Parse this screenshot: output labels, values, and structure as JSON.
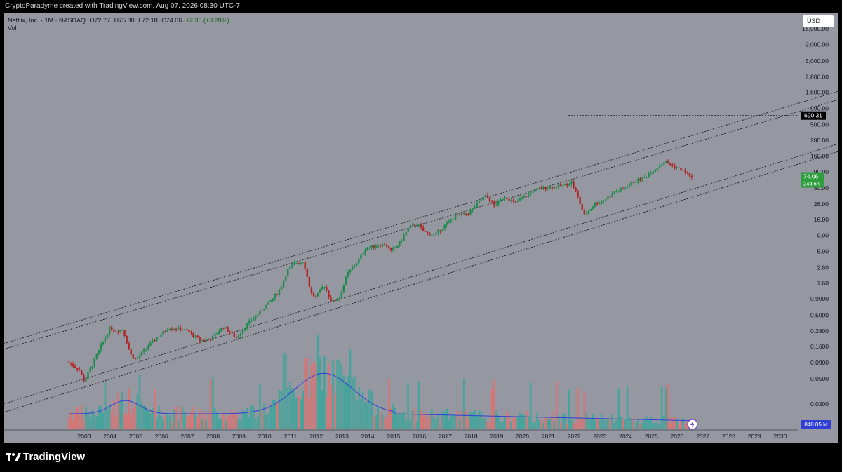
{
  "header": {
    "credit": "CryptoParadyme created with TradingView.com, Aug 07, 2026 08:30 UTC-7"
  },
  "legend": {
    "name": "Netflix, Inc. · 1M · NASDAQ",
    "open": "O72.77",
    "high": "H75.30",
    "low": "L72.18",
    "close": "C74.06",
    "change": "+2.35 (+3.28%)",
    "volume_label": "Vol"
  },
  "currency": "USD",
  "price_tags": {
    "level_line": "690.31",
    "last_price": "74.06",
    "countdown": "24d 5h",
    "volume": "848.05 M"
  },
  "brand": "TradingView",
  "colors": {
    "background": "#9598a1",
    "up_candle": "#1e8a4c",
    "down_candle": "#b22222",
    "volume_up": "#3aa59a",
    "volume_down": "#e0706e",
    "volume_ma": "#2f3fd6",
    "last_price_tag": "#2e9e3e"
  },
  "chart_data": {
    "type": "candlestick",
    "symbol": "Netflix, Inc. · 1M · NASDAQ",
    "y_scale": "log",
    "y_ticks": [
      "16,000.00",
      "9,000.00",
      "5,000.00",
      "2,800.00",
      "1,600.00",
      "900.00",
      "500.00",
      "280.00",
      "160.00",
      "90.00",
      "50.00",
      "28.00",
      "16.00",
      "9.00",
      "5.00",
      "2.80",
      "1.60",
      "0.9000",
      "0.5000",
      "0.2800",
      "0.1600",
      "0.0900",
      "0.0500",
      "0.0200"
    ],
    "x_ticks": [
      "2003",
      "2004",
      "2005",
      "2006",
      "2007",
      "2008",
      "2009",
      "2010",
      "2011",
      "2012",
      "2013",
      "2014",
      "2015",
      "2016",
      "2017",
      "2018",
      "2019",
      "2020",
      "2021",
      "2022",
      "2023",
      "2024",
      "2025",
      "2026",
      "2027",
      "2028",
      "2029",
      "2030"
    ],
    "price_path": [
      [
        2002.4,
        0.09
      ],
      [
        2002.8,
        0.07
      ],
      [
        2003.0,
        0.045
      ],
      [
        2003.3,
        0.08
      ],
      [
        2003.7,
        0.18
      ],
      [
        2004.0,
        0.32
      ],
      [
        2004.2,
        0.28
      ],
      [
        2004.5,
        0.3
      ],
      [
        2004.8,
        0.12
      ],
      [
        2005.0,
        0.1
      ],
      [
        2005.4,
        0.15
      ],
      [
        2005.8,
        0.22
      ],
      [
        2006.3,
        0.32
      ],
      [
        2006.8,
        0.3
      ],
      [
        2007.0,
        0.28
      ],
      [
        2007.5,
        0.2
      ],
      [
        2007.9,
        0.21
      ],
      [
        2008.4,
        0.33
      ],
      [
        2008.9,
        0.22
      ],
      [
        2009.3,
        0.35
      ],
      [
        2009.8,
        0.55
      ],
      [
        2010.3,
        0.9
      ],
      [
        2010.6,
        1.3
      ],
      [
        2010.9,
        2.6
      ],
      [
        2011.2,
        3.3
      ],
      [
        2011.5,
        3.6
      ],
      [
        2011.8,
        1.1
      ],
      [
        2012.0,
        0.95
      ],
      [
        2012.3,
        1.5
      ],
      [
        2012.6,
        0.8
      ],
      [
        2012.9,
        0.95
      ],
      [
        2013.2,
        2.2
      ],
      [
        2013.6,
        3.5
      ],
      [
        2013.9,
        5.5
      ],
      [
        2014.3,
        6.2
      ],
      [
        2014.7,
        6.5
      ],
      [
        2014.9,
        5.0
      ],
      [
        2015.2,
        6.5
      ],
      [
        2015.6,
        12.0
      ],
      [
        2015.9,
        13.5
      ],
      [
        2016.2,
        10.0
      ],
      [
        2016.6,
        9.0
      ],
      [
        2016.9,
        12.0
      ],
      [
        2017.4,
        18.0
      ],
      [
        2017.9,
        20.0
      ],
      [
        2018.3,
        30.0
      ],
      [
        2018.6,
        38.0
      ],
      [
        2018.9,
        26.0
      ],
      [
        2019.3,
        37.0
      ],
      [
        2019.7,
        29.0
      ],
      [
        2020.0,
        34.0
      ],
      [
        2020.4,
        45.0
      ],
      [
        2020.8,
        50.0
      ],
      [
        2021.2,
        52.0
      ],
      [
        2021.6,
        55.0
      ],
      [
        2021.9,
        62.0
      ],
      [
        2022.1,
        40.0
      ],
      [
        2022.4,
        18.5
      ],
      [
        2022.8,
        28.0
      ],
      [
        2023.2,
        33.0
      ],
      [
        2023.6,
        44.0
      ],
      [
        2023.9,
        48.0
      ],
      [
        2024.3,
        62.0
      ],
      [
        2024.7,
        72.0
      ],
      [
        2025.0,
        90.0
      ],
      [
        2025.3,
        110.0
      ],
      [
        2025.5,
        130.0
      ],
      [
        2025.8,
        115.0
      ],
      [
        2026.1,
        100.0
      ],
      [
        2026.4,
        85.0
      ],
      [
        2026.6,
        74.06
      ]
    ],
    "last_price": 74.06,
    "horizontal_level": 690.31,
    "volume_series": "Vol",
    "volume_last": "848.05 M",
    "annotations": [
      "upper parallel channel (dotted)",
      "lower parallel channel (dotted)",
      "horizontal dotted level at 690.31"
    ]
  }
}
